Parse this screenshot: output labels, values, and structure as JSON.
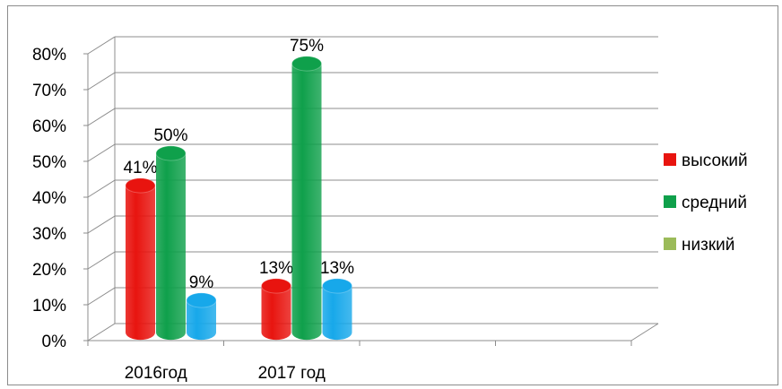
{
  "chart_data": {
    "type": "bar",
    "categories": [
      "2016год",
      "2017 год",
      "",
      ""
    ],
    "series": [
      {
        "name": "высокий",
        "values": [
          41,
          13,
          null,
          null
        ],
        "labels": [
          "41%",
          "13%",
          "",
          ""
        ],
        "color": "#e8140f"
      },
      {
        "name": "средний",
        "values": [
          50,
          75,
          null,
          null
        ],
        "labels": [
          "50%",
          "75%",
          "",
          ""
        ],
        "color": "#0fa04b"
      },
      {
        "name": "низкий",
        "values": [
          9,
          13,
          null,
          null
        ],
        "labels": [
          "9%",
          "13%",
          "",
          ""
        ],
        "color": "#17a8ea",
        "legend_color": "#9bbb59"
      }
    ],
    "y_ticks": [
      "0%",
      "10%",
      "20%",
      "30%",
      "40%",
      "50%",
      "60%",
      "70%",
      "80%"
    ],
    "ylim": [
      0,
      80
    ],
    "y_unit": "%",
    "grid": true,
    "style": "3d-cylinder",
    "legend_position": "right"
  }
}
